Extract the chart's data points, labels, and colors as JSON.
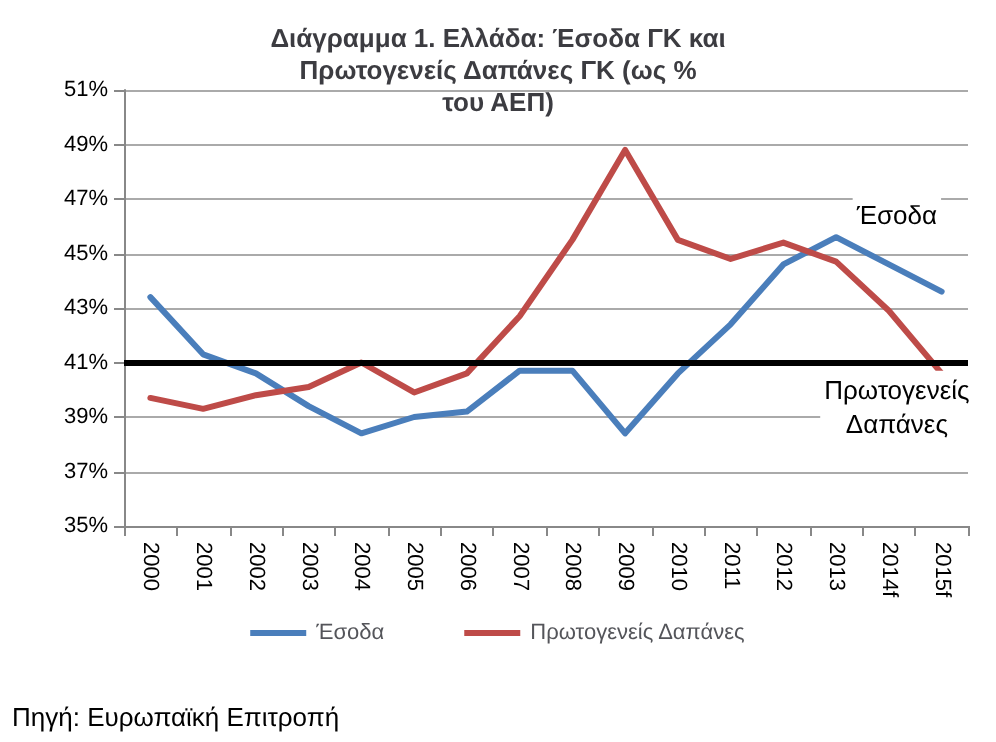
{
  "chart_data": {
    "type": "line",
    "title": "Διάγραμμα 1. Ελλάδα: Έσοδα ΓΚ και Πρωτογενείς Δαπάνες ΓΚ (ως % του ΑΕΠ)",
    "categories": [
      "2000",
      "2001",
      "2002",
      "2003",
      "2004",
      "2005",
      "2006",
      "2007",
      "2008",
      "2009",
      "2010",
      "2011",
      "2012",
      "2013",
      "2014f",
      "2015f"
    ],
    "series": [
      {
        "name": "Έσοδα",
        "color": "#4a7ebb",
        "values": [
          43.4,
          41.3,
          40.6,
          39.4,
          38.4,
          39.0,
          39.2,
          40.7,
          40.7,
          38.4,
          40.6,
          42.4,
          44.6,
          45.6,
          44.6,
          43.6
        ]
      },
      {
        "name": "Πρωτογενείς Δαπάνες",
        "color": "#be4b48",
        "values": [
          39.7,
          39.3,
          39.8,
          40.1,
          41.0,
          39.9,
          40.6,
          42.7,
          45.5,
          48.8,
          45.5,
          44.8,
          45.4,
          44.7,
          42.9,
          40.6
        ]
      }
    ],
    "ylim": [
      35,
      51
    ],
    "yticks": [
      {
        "value": 35,
        "label": "35%"
      },
      {
        "value": 37,
        "label": "37%"
      },
      {
        "value": 39,
        "label": "39%"
      },
      {
        "value": 41,
        "label": "41%"
      },
      {
        "value": 43,
        "label": "43%"
      },
      {
        "value": 45,
        "label": "45%"
      },
      {
        "value": 47,
        "label": "47%"
      },
      {
        "value": 49,
        "label": "49%"
      },
      {
        "value": 51,
        "label": "51%"
      }
    ],
    "ref_lines": [
      {
        "axis": "y",
        "value": 41,
        "color": "#000000"
      }
    ],
    "annotations": [
      "Έσοδα",
      "Πρωτογενείς Δαπάνες",
      "Πηγή: Ευρωπαϊκή Επιτροπή"
    ],
    "grid": "y",
    "legend": "bottom",
    "marker": "none",
    "line_style": "solid"
  }
}
